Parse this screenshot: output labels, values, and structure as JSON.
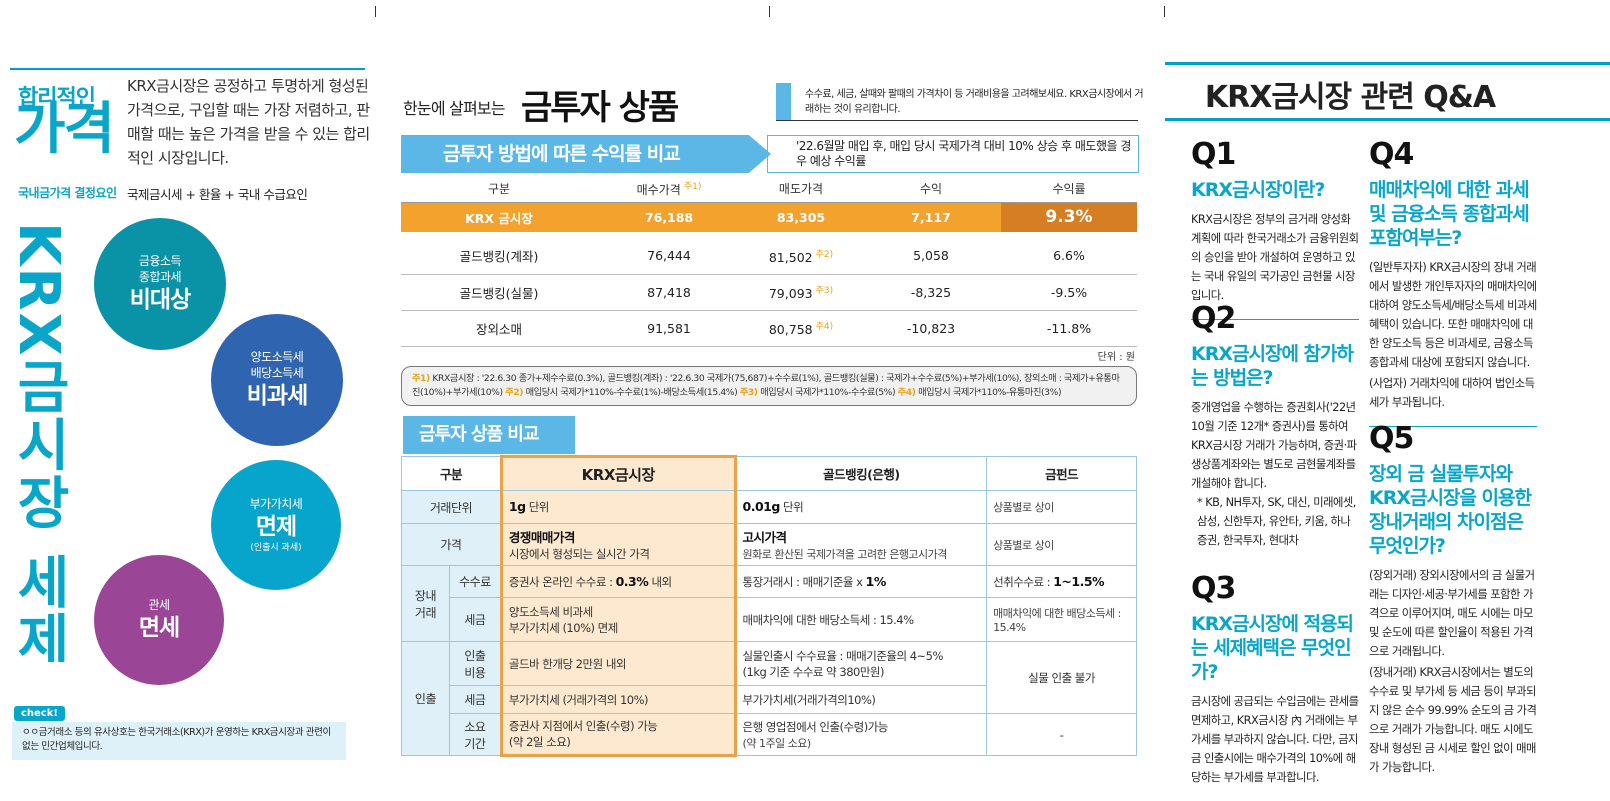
{
  "left": {
    "heading_small": "합리적인",
    "heading_big": "가격",
    "description": "KRX금시장은 공정하고 투명하게 형성된 가격으로, 구입할 때는 가장 저렴하고, 판매할 때는 높은 가격을 받을 수 있는 합리적인 시장입니다.",
    "factor_label": "국내금가격 결정요인",
    "factor_value": "국제금시세 + 환율 + 국내 수급요인",
    "vertical_title": "KRX금시장 세제혜택",
    "circles": [
      {
        "small": "금융소득\n종합과세",
        "big": "비대상",
        "color": "#0a93a7"
      },
      {
        "small": "양도소득세\n배당소득세",
        "big": "비과세",
        "color": "#2f64b1"
      },
      {
        "small": "부가가치세",
        "big": "면제",
        "note": "(인출시 과세)",
        "color": "#07a5cc"
      },
      {
        "small": "관세",
        "big": "면세",
        "color": "#9a4596"
      }
    ],
    "check_label": "check!",
    "check_text": "ㅇㅇ금거래소 등의 유사상호는 한국거래소(KRX)가 운영하는 KRX금시장과 관련이 없는 민간업체입니다."
  },
  "mid": {
    "pre_title": "한눈에 살펴보는",
    "title": "금투자 상품",
    "note": "수수료, 세금, 살때와 팔때의 가격차이 등 거래비용을 고려해보세요. KRX금시장에서 거래하는 것이 유리합니다.",
    "banner": "금투자 방법에 따른 수익률 비교",
    "condition": "'22.6월말 매입 후, 매입 당시 국제가격 대비 10% 상승 후 매도했을 경우 예상 수익률",
    "headers": [
      "구분",
      "매수가격",
      "매도가격",
      "수익",
      "수익률"
    ],
    "header_sup": "주1)",
    "rows": [
      {
        "name": "KRX 금시장",
        "buy": "76,188",
        "sell": "83,305",
        "sup": "",
        "profit": "7,117",
        "rate": "9.3%"
      },
      {
        "name": "골드뱅킹(계좌)",
        "buy": "76,444",
        "sell": "81,502",
        "sup": "주2)",
        "profit": "5,058",
        "rate": "6.6%"
      },
      {
        "name": "골드뱅킹(실물)",
        "buy": "87,418",
        "sell": "79,093",
        "sup": "주3)",
        "profit": "-8,325",
        "rate": "-9.5%"
      },
      {
        "name": "장외소매",
        "buy": "91,581",
        "sell": "80,758",
        "sup": "주4)",
        "profit": "-10,823",
        "rate": "-11.8%"
      }
    ],
    "unit": "단위 : 원",
    "fn1_mark": "주1)",
    "fn1": "KRX금시장 : '22.6.30 종가+제수수료(0.3%), 골드뱅킹(계좌) : '22.6.30 국제가(75,687)+수수료(1%), 골드뱅킹(실물) : 국제가+수수료(5%)+부가세(10%), 장외소매 : 국제가+유통마진(10%)+부가세(10%)",
    "fn2_mark": "주2)",
    "fn2": "매입당시 국제가*110%-수수료(1%)-배당소득세(15.4%)",
    "fn3_mark": "주3)",
    "fn3": "매입당시 국제가*110%-수수료(5%)",
    "fn4_mark": "주4)",
    "fn4": "매입당시 국제가*110%-유통마진(3%)",
    "sec2_title": "금투자 상품 비교",
    "cmp": {
      "h_label": "구분",
      "h_krx": "KRX금시장",
      "h_bank": "골드뱅킹(은행)",
      "h_fund": "금펀드",
      "unit_label": "거래단위",
      "unit_krx_b": "1g",
      "unit_krx": "단위",
      "unit_bank_b": "0.01g",
      "unit_bank": "단위",
      "unit_fund": "상품별로 상이",
      "price_label": "가격",
      "price_krx_b": "경쟁매매가격",
      "price_krx": "시장에서 형성되는 실시간 가격",
      "price_bank_b": "고시가격",
      "price_bank": "원화로 환산된 국제가격을 고려한 은행고시가격",
      "price_fund": "상품별로 상이",
      "market_label": "장내\n거래",
      "fee_label": "수수료",
      "fee_krx": "증권사 온라인 수수료 :",
      "fee_krx_b": "0.3%",
      "fee_krx_tail": "내외",
      "fee_bank": "통장거래시 : 매매기준율 x",
      "fee_bank_b": "1%",
      "fee_fund": "선취수수료 :",
      "fee_fund_b": "1~1.5%",
      "tax_label": "세금",
      "tax_krx1": "양도소득세 비과세",
      "tax_krx2": "부가가치세 (10%) 면제",
      "tax_bank": "매매차익에 대한 배당소득세 : 15.4%",
      "tax_fund": "매매차익에 대한 배당소득세 : 15.4%",
      "wd_label": "인출",
      "wdfee_label": "인출\n비용",
      "wdfee_krx": "골드바 한개당 2만원 내외",
      "wdfee_bank1": "실물인출시 수수료율 : 매매기준율의 4~5%",
      "wdfee_bank2": "(1kg 기준 수수료 약 380만원)",
      "wd_fund": "실물 인출 불가",
      "wdtax_label": "세금",
      "wdtax_krx": "부가가치세 (거래가격의 10%)",
      "wdtax_bank": "부가가치세(거래가격의10%)",
      "time_label": "소요\n기간",
      "time_krx1": "증권사 지점에서 인출(수령) 가능",
      "time_krx2": "(약 2일 소요)",
      "time_bank1": "은행 영업점에서 인출(수령)가능",
      "time_bank2": "(약 1주일 소요)",
      "time_fund": "-"
    }
  },
  "right": {
    "title": "KRX금시장 관련 Q&A",
    "qas": [
      {
        "num": "Q1",
        "title": "KRX금시장이란?",
        "body": "KRX금시장은 정부의 금거래 양성화 계획에 따라 한국거래소가 금융위원회의 승인을 받아 개설하여 운영하고 있는 국내 유일의 국가공인 금현물 시장입니다."
      },
      {
        "num": "Q2",
        "title": "KRX금시장에 참가하는 방법은?",
        "body": "중개영업을 수행하는 증권회사('22년 10월 기준 12개* 증권사)를 통하여 KRX금시장 거래가 가능하며, 증권·파생상품계좌와는 별도로 금현물계좌를 개설해야 합니다.",
        "note": "* KB, NH투자, SK, 대신, 미래에셋, 삼성, 신한투자, 유안타, 키움, 하나증권, 한국투자, 현대차"
      },
      {
        "num": "Q3",
        "title": "KRX금시장에 적용되는 세제혜택은 무엇인가?",
        "body": "금시장에 공급되는 수입금에는 관세를 면제하고, KRX금시장 內 거래에는 부가세를 부과하지 않습니다. 다만, 금지금 인출시에는 매수가격의 10%에 해당하는 부가세를 부과합니다."
      },
      {
        "num": "Q4",
        "title": "매매차익에 대한 과세 및 금융소득 종합과세 포함여부는?",
        "body": "(일반투자자) KRX금시장의 장내 거래에서 발생한 개인투자자의 매매차익에 대하여 양도소득세/배당소득세 비과세 혜택이 있습니다. 또한 매매차익에 대한 양도소득 등은 비과세로, 금융소득종합과세 대상에 포함되지 않습니다.",
        "body2": "(사업자) 거래차익에 대하여 법인소득세가 부과됩니다."
      },
      {
        "num": "Q5",
        "title": "장외 금 실물투자와 KRX금시장을 이용한 장내거래의 차이점은 무엇인가?",
        "body": "(장외거래) 장외시장에서의 금 실물거래는 디자인·세공·부가세를 포함한 가격으로 이루어지며, 매도 시에는 마모 및 순도에 따른 할인율이 적용된 가격으로 거래됩니다.",
        "body2": "(장내거래) KRX금시장에서는 별도의 수수료 및 부가세 등 세금 등이 부과되지 않은 순수 99.99% 순도의 금 가격으로 거래가 가능합니다. 매도 시에도 장내 형성된 금 시세로 할인 없이 매매가 가능합니다."
      }
    ]
  }
}
